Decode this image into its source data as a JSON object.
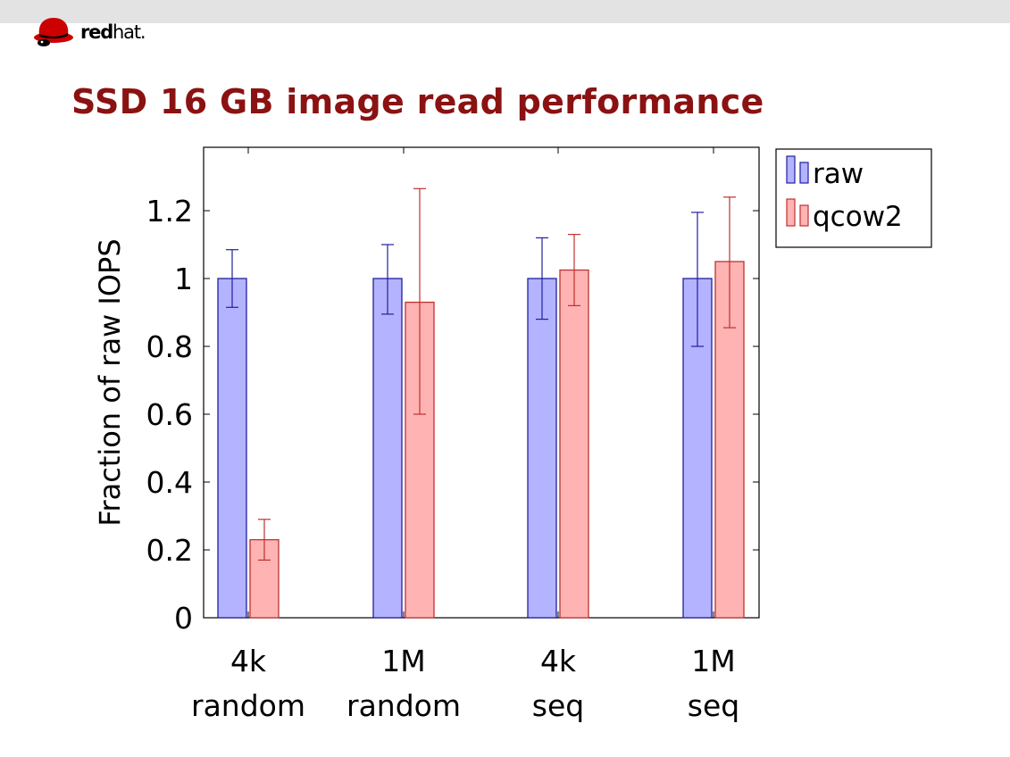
{
  "logo": {
    "text_bold": "red",
    "text_light": "hat."
  },
  "slide": {
    "title": "SSD 16 GB image read performance"
  },
  "colors": {
    "raw_fill": "#b3b3ff",
    "raw_stroke": "#2020a0",
    "qcow2_fill": "#ffb3b3",
    "qcow2_stroke": "#c03030",
    "title": "#8b1212"
  },
  "chart_data": {
    "type": "bar",
    "title": "",
    "xlabel": "",
    "ylabel": "Fraction of raw IOPS",
    "ylim": [
      0,
      1.38
    ],
    "yticks": [
      "0",
      "0.2",
      "0.4",
      "0.6",
      "0.8",
      "1",
      "1.2"
    ],
    "yticks_values": [
      0,
      0.2,
      0.4,
      0.6,
      0.8,
      1,
      1.2
    ],
    "categories": [
      [
        "4k",
        "random"
      ],
      [
        "1M",
        "random"
      ],
      [
        "4k",
        "seq"
      ],
      [
        "1M",
        "seq"
      ]
    ],
    "legend_position": "outside-top-right",
    "grid": false,
    "series": [
      {
        "name": "raw",
        "values": [
          1.0,
          1.0,
          1.0,
          1.0
        ],
        "error_low": [
          0.915,
          0.895,
          0.88,
          0.8
        ],
        "error_high": [
          1.085,
          1.1,
          1.12,
          1.195
        ]
      },
      {
        "name": "qcow2",
        "values": [
          0.23,
          0.93,
          1.025,
          1.05
        ],
        "error_low": [
          0.17,
          0.6,
          0.92,
          0.855
        ],
        "error_high": [
          0.29,
          1.265,
          1.13,
          1.24
        ]
      }
    ]
  }
}
